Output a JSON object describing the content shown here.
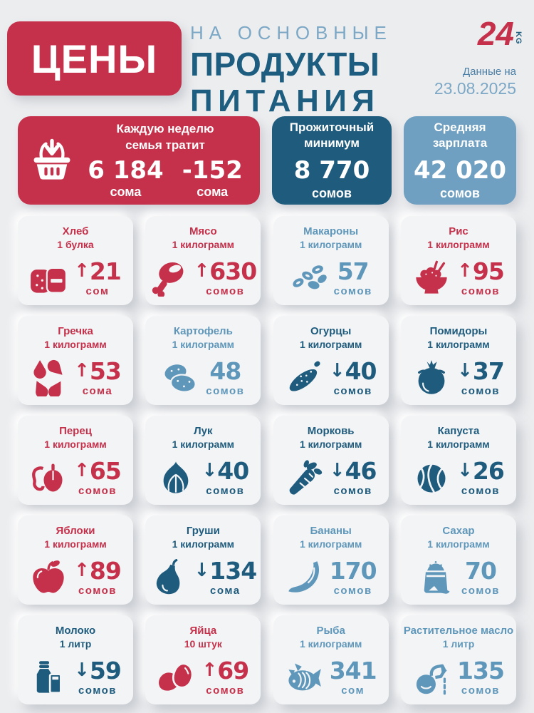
{
  "header": {
    "title": "ЦЕНЫ",
    "subtitle_line1": "НА ОСНОВНЫЕ",
    "subtitle_line2": "ПРОДУКТЫ",
    "subtitle_line3": "ПИТАНИЯ",
    "logo_number": "24",
    "logo_suffix": "KG",
    "date_label": "Данные на",
    "date_value": "23.08.2025"
  },
  "colors": {
    "price_up": "#c5304a",
    "price_down": "#1e5b7d",
    "price_flat": "#5f97ba",
    "header_teal": "#1d5e80",
    "header_light_blue": "#7ca8c6",
    "salary_box": "#6f9fc1"
  },
  "stats": {
    "weekly": {
      "icon": "basket-icon",
      "title_line1": "Каждую неделю",
      "title_line2": "семья тратит",
      "amount": "6 184",
      "amount_unit": "сома",
      "change": "-152",
      "change_unit": "сома"
    },
    "minimum": {
      "title_line1": "Прожиточный",
      "title_line2": "минимум",
      "value": "8 770",
      "unit": "сомов"
    },
    "salary": {
      "title_line1": "Средняя",
      "title_line2": "зарплата",
      "value": "42 020",
      "unit": "сомов"
    }
  },
  "products": [
    {
      "name": "Хлеб",
      "qty": "1 булка",
      "icon": "bread-icon",
      "trend": "up",
      "arrow": "↑",
      "price": "21",
      "unit": "сом"
    },
    {
      "name": "Мясо",
      "qty": "1 килограмм",
      "icon": "meat-icon",
      "trend": "up",
      "arrow": "↑",
      "price": "630",
      "unit": "сомов"
    },
    {
      "name": "Макароны",
      "qty": "1 килограмм",
      "icon": "pasta-icon",
      "trend": "flat",
      "arrow": "",
      "price": "57",
      "unit": "сомов"
    },
    {
      "name": "Рис",
      "qty": "1 килограмм",
      "icon": "rice-icon",
      "trend": "up",
      "arrow": "↑",
      "price": "95",
      "unit": "сомов"
    },
    {
      "name": "Гречка",
      "qty": "1 килограмм",
      "icon": "buckwheat-icon",
      "trend": "up",
      "arrow": "↑",
      "price": "53",
      "unit": "сома"
    },
    {
      "name": "Картофель",
      "qty": "1 килограмм",
      "icon": "potato-icon",
      "trend": "flat",
      "arrow": "",
      "price": "48",
      "unit": "сомов"
    },
    {
      "name": "Огурцы",
      "qty": "1 килограмм",
      "icon": "cucumber-icon",
      "trend": "down",
      "arrow": "↓",
      "price": "40",
      "unit": "сомов"
    },
    {
      "name": "Помидоры",
      "qty": "1 килограмм",
      "icon": "tomato-icon",
      "trend": "down",
      "arrow": "↓",
      "price": "37",
      "unit": "сомов"
    },
    {
      "name": "Перец",
      "qty": "1 килограмм",
      "icon": "pepper-icon",
      "trend": "up",
      "arrow": "↑",
      "price": "65",
      "unit": "сомов"
    },
    {
      "name": "Лук",
      "qty": "1 килограмм",
      "icon": "onion-icon",
      "trend": "down",
      "arrow": "↓",
      "price": "40",
      "unit": "сомов"
    },
    {
      "name": "Морковь",
      "qty": "1 килограмм",
      "icon": "carrot-icon",
      "trend": "down",
      "arrow": "↓",
      "price": "46",
      "unit": "сомов"
    },
    {
      "name": "Капуста",
      "qty": "1 килограмм",
      "icon": "cabbage-icon",
      "trend": "down",
      "arrow": "↓",
      "price": "26",
      "unit": "сомов"
    },
    {
      "name": "Яблоки",
      "qty": "1 килограмм",
      "icon": "apple-icon",
      "trend": "up",
      "arrow": "↑",
      "price": "89",
      "unit": "сомов"
    },
    {
      "name": "Груши",
      "qty": "1 килограмм",
      "icon": "pear-icon",
      "trend": "down",
      "arrow": "↓",
      "price": "134",
      "unit": "сома"
    },
    {
      "name": "Бананы",
      "qty": "1 килограмм",
      "icon": "banana-icon",
      "trend": "flat",
      "arrow": "",
      "price": "170",
      "unit": "сомов"
    },
    {
      "name": "Сахар",
      "qty": "1 килограмм",
      "icon": "sugar-icon",
      "trend": "flat",
      "arrow": "",
      "price": "70",
      "unit": "сомов"
    },
    {
      "name": "Молоко",
      "qty": "1 литр",
      "icon": "milk-icon",
      "trend": "down",
      "arrow": "↓",
      "price": "59",
      "unit": "сомов"
    },
    {
      "name": "Яйца",
      "qty": "10 штук",
      "icon": "eggs-icon",
      "trend": "up",
      "arrow": "↑",
      "price": "69",
      "unit": "сомов"
    },
    {
      "name": "Рыба",
      "qty": "1 килограмм",
      "icon": "fish-icon",
      "trend": "flat",
      "arrow": "",
      "price": "341",
      "unit": "сом"
    },
    {
      "name": "Растительное масло",
      "qty": "1 литр",
      "icon": "oil-icon",
      "trend": "flat",
      "arrow": "",
      "price": "135",
      "unit": "сомов"
    }
  ],
  "chart_data": {
    "type": "table",
    "title": "Цены на основные продукты питания",
    "as_of": "23.08.2025",
    "summary": {
      "weekly_family_spend_som": 6184,
      "weekly_spend_change_som": -152,
      "subsistence_minimum_som": 8770,
      "average_salary_som": 42020
    },
    "columns": [
      "product",
      "quantity",
      "price_som",
      "trend"
    ],
    "rows": [
      [
        "Хлеб",
        "1 булка",
        21,
        "up"
      ],
      [
        "Мясо",
        "1 килограмм",
        630,
        "up"
      ],
      [
        "Макароны",
        "1 килограмм",
        57,
        "flat"
      ],
      [
        "Рис",
        "1 килограмм",
        95,
        "up"
      ],
      [
        "Гречка",
        "1 килограмм",
        53,
        "up"
      ],
      [
        "Картофель",
        "1 килограмм",
        48,
        "flat"
      ],
      [
        "Огурцы",
        "1 килограмм",
        40,
        "down"
      ],
      [
        "Помидоры",
        "1 килограмм",
        37,
        "down"
      ],
      [
        "Перец",
        "1 килограмм",
        65,
        "up"
      ],
      [
        "Лук",
        "1 килограмм",
        40,
        "down"
      ],
      [
        "Морковь",
        "1 килограмм",
        46,
        "down"
      ],
      [
        "Капуста",
        "1 килограмм",
        26,
        "down"
      ],
      [
        "Яблоки",
        "1 килограмм",
        89,
        "up"
      ],
      [
        "Груши",
        "1 килограмм",
        134,
        "down"
      ],
      [
        "Бананы",
        "1 килограмм",
        170,
        "flat"
      ],
      [
        "Сахар",
        "1 килограмм",
        70,
        "flat"
      ],
      [
        "Молоко",
        "1 литр",
        59,
        "down"
      ],
      [
        "Яйца",
        "10 штук",
        69,
        "up"
      ],
      [
        "Рыба",
        "1 килограмм",
        341,
        "flat"
      ],
      [
        "Растительное масло",
        "1 литр",
        135,
        "flat"
      ]
    ]
  }
}
